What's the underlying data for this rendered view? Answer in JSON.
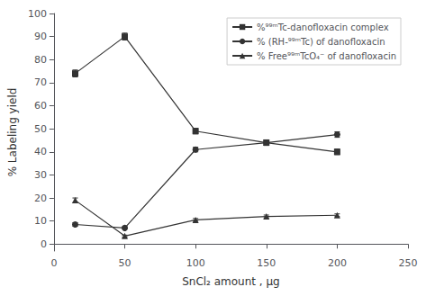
{
  "chart_data": {
    "type": "line",
    "xlabel": "SnCl₂ amount , μg",
    "ylabel": "% Labeling yield",
    "x": [
      15,
      50,
      100,
      150,
      200
    ],
    "series": [
      {
        "name": "%⁹⁹ᵐTc-danofloxacin complex",
        "color": "#333333",
        "marker": "square",
        "values": [
          74,
          90,
          49,
          44,
          40
        ],
        "yerr": [
          1.5,
          1.5,
          1.2,
          1.2,
          1.2
        ]
      },
      {
        "name": "% (RH-⁹⁹ᵐTc) of danofloxacin",
        "color": "#333333",
        "marker": "circle",
        "values": [
          8.5,
          7,
          41,
          44,
          47.5
        ],
        "yerr": [
          0.8,
          0.5,
          1.0,
          1.0,
          1.2
        ]
      },
      {
        "name": "% Free⁹⁹ᵐTcO₄⁻ of danofloxacin",
        "color": "#333333",
        "marker": "triangle",
        "values": [
          19,
          3.5,
          10.5,
          12,
          12.5
        ],
        "yerr": [
          1.0,
          0.4,
          0.6,
          0.6,
          0.6
        ]
      }
    ],
    "xlim": [
      0,
      250
    ],
    "ylim": [
      -3,
      100
    ],
    "xticks": [
      0,
      50,
      100,
      150,
      200,
      250
    ],
    "yticks": [
      0,
      10,
      20,
      30,
      40,
      50,
      60,
      70,
      80,
      90,
      100
    ],
    "grid": false,
    "legend": "upper right"
  }
}
